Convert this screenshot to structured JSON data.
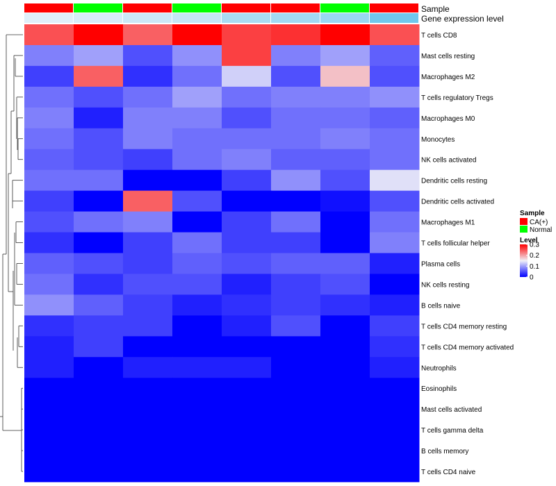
{
  "chart_data": {
    "type": "heatmap",
    "annotation_rows": [
      {
        "label": "Sample",
        "values": [
          "CA(+)",
          "Normal",
          "CA(+)",
          "Normal",
          "CA(+)",
          "CA(+)",
          "Normal",
          "CA(+)"
        ]
      },
      {
        "label": "Gene expression level",
        "values": [
          0.06,
          0.12,
          0.2,
          0.25,
          0.45,
          0.5,
          0.55,
          0.85
        ]
      }
    ],
    "rows": [
      "T cells CD8",
      "Mast cells resting",
      "Macrophages M2",
      "T cells regulatory  Tregs",
      "Macrophages M0",
      "Monocytes",
      "NK cells activated",
      "Dendritic cells resting",
      "Dendritic cells activated",
      "Macrophages M1",
      "T cells follicular helper",
      "Plasma cells",
      "NK cells resting",
      "B cells naive",
      "T cells CD4 memory resting",
      "T cells CD4 memory activated",
      "Neutrophils",
      "Eosinophils",
      "Mast cells activated",
      "T cells gamma delta",
      "B cells memory",
      "T cells CD4 naive"
    ],
    "values": [
      [
        0.25,
        0.3,
        0.24,
        0.3,
        0.26,
        0.27,
        0.3,
        0.25
      ],
      [
        0.08,
        0.1,
        0.05,
        0.09,
        0.26,
        0.08,
        0.1,
        0.06
      ],
      [
        0.04,
        0.24,
        0.03,
        0.07,
        0.13,
        0.05,
        0.18,
        0.05
      ],
      [
        0.07,
        0.05,
        0.07,
        0.1,
        0.07,
        0.08,
        0.08,
        0.09
      ],
      [
        0.08,
        0.02,
        0.08,
        0.08,
        0.05,
        0.07,
        0.07,
        0.06
      ],
      [
        0.07,
        0.05,
        0.08,
        0.07,
        0.07,
        0.07,
        0.08,
        0.07
      ],
      [
        0.06,
        0.05,
        0.04,
        0.07,
        0.08,
        0.06,
        0.06,
        0.07
      ],
      [
        0.07,
        0.07,
        0.0,
        0.0,
        0.04,
        0.09,
        0.05,
        0.14
      ],
      [
        0.04,
        0.0,
        0.24,
        0.05,
        0.0,
        0.0,
        0.01,
        0.05
      ],
      [
        0.05,
        0.07,
        0.08,
        0.0,
        0.04,
        0.07,
        0.0,
        0.07
      ],
      [
        0.03,
        0.0,
        0.04,
        0.07,
        0.04,
        0.04,
        0.0,
        0.08
      ],
      [
        0.06,
        0.05,
        0.04,
        0.06,
        0.05,
        0.06,
        0.06,
        0.02
      ],
      [
        0.07,
        0.03,
        0.05,
        0.05,
        0.02,
        0.04,
        0.05,
        0.0
      ],
      [
        0.09,
        0.06,
        0.04,
        0.02,
        0.03,
        0.04,
        0.03,
        0.02
      ],
      [
        0.03,
        0.04,
        0.04,
        0.0,
        0.02,
        0.05,
        0.0,
        0.04
      ],
      [
        0.02,
        0.04,
        0.0,
        0.0,
        0.0,
        0.0,
        0.0,
        0.03
      ],
      [
        0.02,
        0.0,
        0.02,
        0.02,
        0.02,
        0.0,
        0.0,
        0.02
      ],
      [
        0.0,
        0.0,
        0.0,
        0.0,
        0.0,
        0.0,
        0.0,
        0.0
      ],
      [
        0.0,
        0.0,
        0.0,
        0.0,
        0.0,
        0.0,
        0.0,
        0.0
      ],
      [
        0.0,
        0.0,
        0.0,
        0.0,
        0.0,
        0.0,
        0.0,
        0.0
      ],
      [
        0.0,
        0.0,
        0.0,
        0.0,
        0.0,
        0.0,
        0.0,
        0.0
      ],
      [
        0.0,
        0.0,
        0.0,
        0.0,
        0.0,
        0.0,
        0.0,
        0.0
      ]
    ],
    "color_scale": {
      "range": [
        0,
        0.3
      ],
      "stops": [
        {
          "value": 0.0,
          "color": "#0000ff"
        },
        {
          "value": 0.15,
          "color": "#f0f0f8"
        },
        {
          "value": 0.3,
          "color": "#ff0000"
        }
      ]
    },
    "legends": {
      "sample": {
        "title": "Sample",
        "entries": [
          {
            "label": "CA(+)",
            "color": "#ff0000"
          },
          {
            "label": "Normal",
            "color": "#00ff00"
          }
        ]
      },
      "level": {
        "title": "Level",
        "ticks": [
          0.3,
          0.2,
          0.1,
          0
        ],
        "tick_labels": [
          "0.3",
          "0.2",
          "0.1",
          "0"
        ]
      }
    },
    "expression_colors": {
      "low": "#e8f2fa",
      "high": "#5bc0eb"
    },
    "row_dendrogram": true,
    "legend_position": "right"
  }
}
